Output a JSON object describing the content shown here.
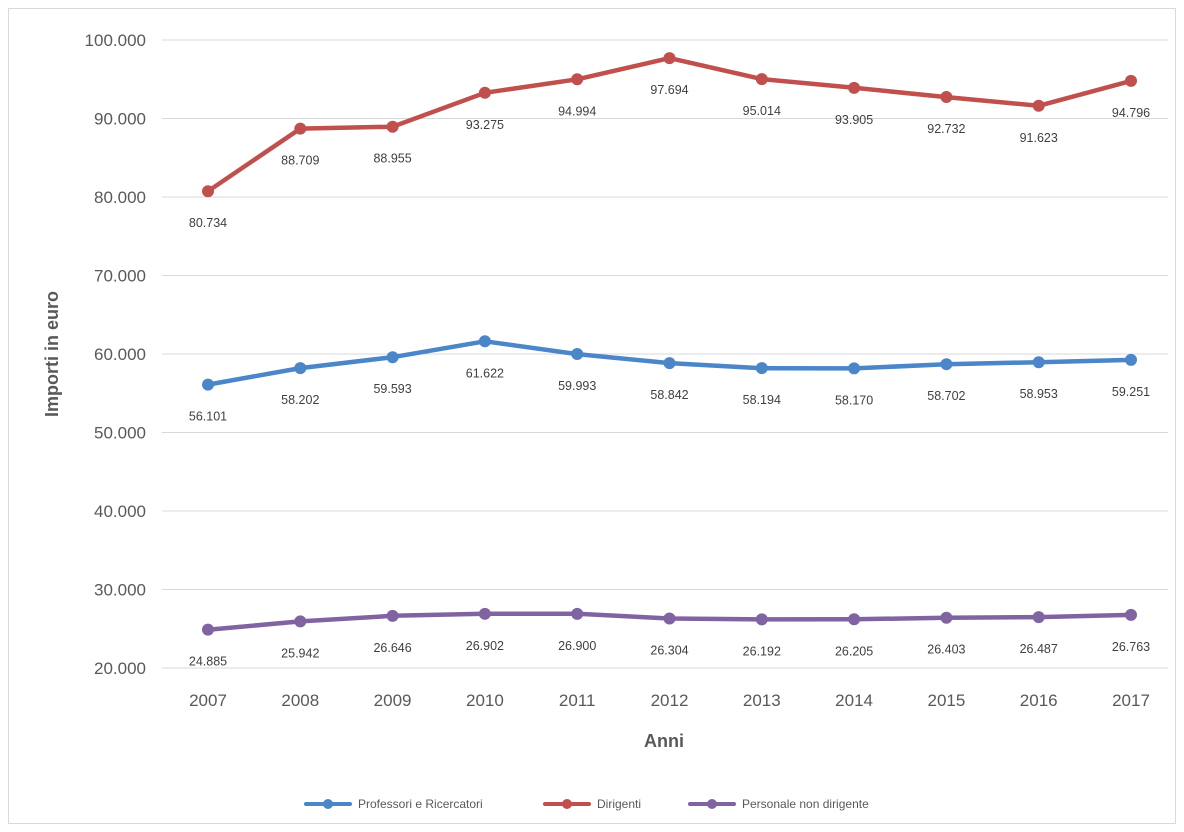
{
  "chart_data": {
    "type": "line",
    "xlabel": "Anni",
    "ylabel": "Importi in euro",
    "ylim": [
      20000,
      100000
    ],
    "yticks": [
      20000,
      30000,
      40000,
      50000,
      60000,
      70000,
      80000,
      90000,
      100000
    ],
    "ytick_labels": [
      "20.000",
      "30.000",
      "40.000",
      "50.000",
      "60.000",
      "70.000",
      "80.000",
      "90.000",
      "100.000"
    ],
    "grid": true,
    "legend_position": "bottom",
    "categories": [
      "2007",
      "2008",
      "2009",
      "2010",
      "2011",
      "2012",
      "2013",
      "2014",
      "2015",
      "2016",
      "2017"
    ],
    "series": [
      {
        "name": "Professori e Ricercatori",
        "color": "#4a86c8",
        "values": [
          56101,
          58202,
          59593,
          61622,
          59993,
          58842,
          58194,
          58170,
          58702,
          58953,
          59251
        ],
        "labels": [
          "56.101",
          "58.202",
          "59.593",
          "61.622",
          "59.993",
          "58.842",
          "58.194",
          "58.170",
          "58.702",
          "58.953",
          "59.251"
        ]
      },
      {
        "name": "Dirigenti",
        "color": "#c0504d",
        "values": [
          80734,
          88709,
          88955,
          93275,
          94994,
          97694,
          95014,
          93905,
          92732,
          91623,
          94796
        ],
        "labels": [
          "80.734",
          "88.709",
          "88.955",
          "93.275",
          "94.994",
          "97.694",
          "95.014",
          "93.905",
          "92.732",
          "91.623",
          "94.796"
        ]
      },
      {
        "name": "Personale non dirigente",
        "color": "#8064a2",
        "values": [
          24885,
          25942,
          26646,
          26902,
          26900,
          26304,
          26192,
          26205,
          26403,
          26487,
          26763
        ],
        "labels": [
          "24.885",
          "25.942",
          "26.646",
          "26.902",
          "26.900",
          "26.304",
          "26.192",
          "26.205",
          "26.403",
          "26.487",
          "26.763"
        ]
      }
    ]
  }
}
